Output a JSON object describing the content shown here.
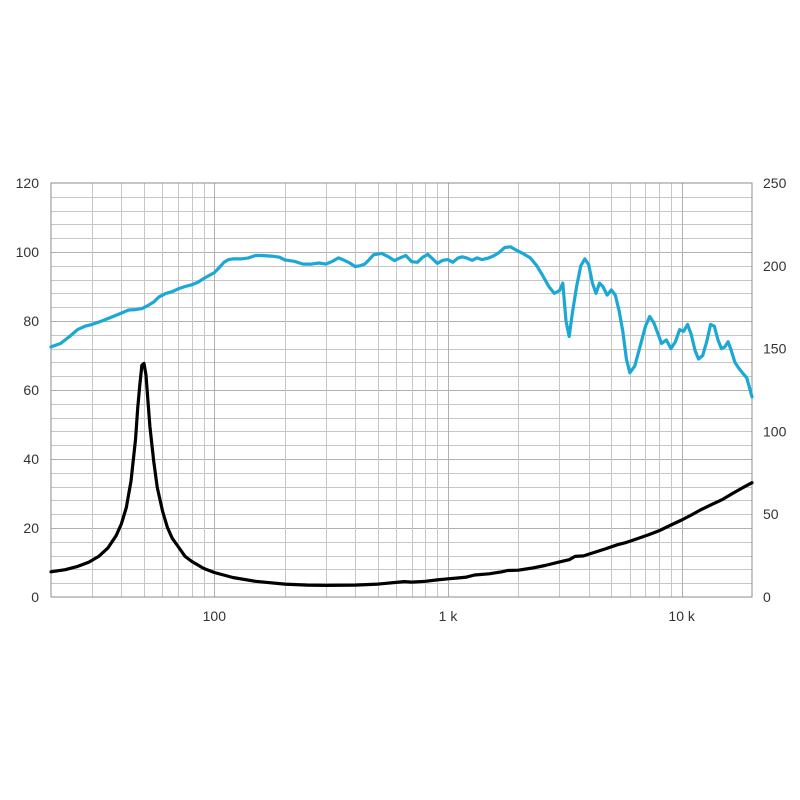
{
  "chart_data": {
    "type": "line",
    "x_scale": "log",
    "x_range": [
      20,
      20000
    ],
    "x_ticks": [
      {
        "value": 100,
        "label": "100"
      },
      {
        "value": 1000,
        "label": "1 k"
      },
      {
        "value": 10000,
        "label": "10 k"
      }
    ],
    "y_left": {
      "range": [
        0,
        120
      ],
      "ticks": [
        "0",
        "20",
        "40",
        "60",
        "80",
        "100",
        "120"
      ]
    },
    "y_right": {
      "range": [
        0,
        250
      ],
      "ticks": [
        "0",
        "50",
        "100",
        "150",
        "200",
        "250"
      ]
    },
    "grid": true,
    "series": [
      {
        "axis": "left",
        "color": "#1ba8d5",
        "points": [
          [
            20,
            72.5
          ],
          [
            22,
            73.5
          ],
          [
            24,
            75.5
          ],
          [
            26,
            77.5
          ],
          [
            28,
            78.5
          ],
          [
            30,
            79
          ],
          [
            33,
            80
          ],
          [
            36,
            81
          ],
          [
            40,
            82.3
          ],
          [
            43,
            83.2
          ],
          [
            46,
            83.3
          ],
          [
            49,
            83.6
          ],
          [
            52,
            84.5
          ],
          [
            55,
            85.5
          ],
          [
            58,
            87
          ],
          [
            62,
            88
          ],
          [
            66,
            88.5
          ],
          [
            70,
            89.3
          ],
          [
            75,
            90
          ],
          [
            80,
            90.5
          ],
          [
            85,
            91.2
          ],
          [
            90,
            92.3
          ],
          [
            95,
            93.2
          ],
          [
            100,
            94
          ],
          [
            105,
            95.5
          ],
          [
            110,
            97
          ],
          [
            115,
            97.8
          ],
          [
            120,
            98
          ],
          [
            130,
            98
          ],
          [
            140,
            98.3
          ],
          [
            150,
            99
          ],
          [
            160,
            99
          ],
          [
            175,
            98.8
          ],
          [
            190,
            98.5
          ],
          [
            200,
            97.7
          ],
          [
            220,
            97.3
          ],
          [
            240,
            96.5
          ],
          [
            260,
            96.5
          ],
          [
            280,
            96.8
          ],
          [
            300,
            96.5
          ],
          [
            320,
            97.3
          ],
          [
            340,
            98.3
          ],
          [
            360,
            97.6
          ],
          [
            380,
            96.8
          ],
          [
            400,
            95.8
          ],
          [
            420,
            96
          ],
          [
            440,
            96.5
          ],
          [
            460,
            97.8
          ],
          [
            480,
            99.2
          ],
          [
            520,
            99.6
          ],
          [
            560,
            98.5
          ],
          [
            590,
            97.5
          ],
          [
            620,
            98.2
          ],
          [
            660,
            99
          ],
          [
            700,
            97.2
          ],
          [
            740,
            97
          ],
          [
            780,
            98.5
          ],
          [
            820,
            99.3
          ],
          [
            860,
            98
          ],
          [
            900,
            96.7
          ],
          [
            950,
            97.6
          ],
          [
            1000,
            97.8
          ],
          [
            1050,
            97
          ],
          [
            1100,
            98.2
          ],
          [
            1150,
            98.6
          ],
          [
            1200,
            98.3
          ],
          [
            1270,
            97.6
          ],
          [
            1330,
            98.3
          ],
          [
            1400,
            97.8
          ],
          [
            1480,
            98.2
          ],
          [
            1560,
            98.8
          ],
          [
            1650,
            99.8
          ],
          [
            1750,
            101.3
          ],
          [
            1850,
            101.5
          ],
          [
            1950,
            100.6
          ],
          [
            2100,
            99.5
          ],
          [
            2250,
            98.3
          ],
          [
            2400,
            96
          ],
          [
            2550,
            93
          ],
          [
            2700,
            90
          ],
          [
            2850,
            88
          ],
          [
            3000,
            88.8
          ],
          [
            3100,
            91
          ],
          [
            3200,
            80
          ],
          [
            3300,
            75.5
          ],
          [
            3400,
            82
          ],
          [
            3550,
            90
          ],
          [
            3700,
            96
          ],
          [
            3850,
            98
          ],
          [
            4000,
            96.3
          ],
          [
            4150,
            91
          ],
          [
            4300,
            88
          ],
          [
            4450,
            91
          ],
          [
            4600,
            90
          ],
          [
            4800,
            87.5
          ],
          [
            5000,
            89
          ],
          [
            5200,
            87.5
          ],
          [
            5400,
            83
          ],
          [
            5600,
            77
          ],
          [
            5800,
            69
          ],
          [
            6000,
            65
          ],
          [
            6300,
            67
          ],
          [
            6600,
            72
          ],
          [
            7000,
            78.5
          ],
          [
            7300,
            81.3
          ],
          [
            7600,
            79.5
          ],
          [
            7900,
            76.5
          ],
          [
            8200,
            73.5
          ],
          [
            8600,
            74.5
          ],
          [
            9000,
            72
          ],
          [
            9400,
            74
          ],
          [
            9800,
            77.5
          ],
          [
            10200,
            77
          ],
          [
            10600,
            79
          ],
          [
            11000,
            76
          ],
          [
            11400,
            71.5
          ],
          [
            11800,
            69
          ],
          [
            12300,
            70
          ],
          [
            12800,
            74
          ],
          [
            13300,
            79
          ],
          [
            13800,
            78.5
          ],
          [
            14300,
            74.5
          ],
          [
            14800,
            72
          ],
          [
            15300,
            72.5
          ],
          [
            15800,
            74
          ],
          [
            16300,
            71.5
          ],
          [
            16900,
            68
          ],
          [
            17500,
            66.5
          ],
          [
            18200,
            65
          ],
          [
            19000,
            63.5
          ],
          [
            20000,
            58
          ]
        ]
      },
      {
        "axis": "right",
        "color": "#000000",
        "points": [
          [
            20,
            15.2
          ],
          [
            23,
            16.5
          ],
          [
            26,
            18.5
          ],
          [
            29,
            21
          ],
          [
            32,
            24.5
          ],
          [
            35,
            29.5
          ],
          [
            38,
            37
          ],
          [
            40,
            44
          ],
          [
            42,
            54
          ],
          [
            44,
            70
          ],
          [
            46,
            95
          ],
          [
            47,
            114
          ],
          [
            48,
            128
          ],
          [
            49,
            140
          ],
          [
            50,
            141
          ],
          [
            51,
            134
          ],
          [
            52,
            118
          ],
          [
            53,
            103
          ],
          [
            55,
            82
          ],
          [
            57,
            66
          ],
          [
            60,
            52
          ],
          [
            63,
            42
          ],
          [
            66,
            35.5
          ],
          [
            70,
            30.5
          ],
          [
            75,
            24.5
          ],
          [
            80,
            21.5
          ],
          [
            90,
            17.3
          ],
          [
            100,
            14.8
          ],
          [
            120,
            11.8
          ],
          [
            150,
            9.5
          ],
          [
            200,
            7.8
          ],
          [
            250,
            7.2
          ],
          [
            300,
            7
          ],
          [
            400,
            7.2
          ],
          [
            500,
            7.8
          ],
          [
            600,
            8.8
          ],
          [
            650,
            9.3
          ],
          [
            700,
            9
          ],
          [
            800,
            9.5
          ],
          [
            900,
            10.3
          ],
          [
            1000,
            11
          ],
          [
            1100,
            11.5
          ],
          [
            1200,
            12
          ],
          [
            1300,
            13.3
          ],
          [
            1500,
            14
          ],
          [
            1700,
            15.2
          ],
          [
            1800,
            16
          ],
          [
            2000,
            16.2
          ],
          [
            2300,
            17.5
          ],
          [
            2600,
            19
          ],
          [
            3000,
            21.2
          ],
          [
            3300,
            22.5
          ],
          [
            3500,
            24.5
          ],
          [
            3800,
            24.8
          ],
          [
            4200,
            26.8
          ],
          [
            4700,
            29
          ],
          [
            5300,
            31.5
          ],
          [
            5800,
            33
          ],
          [
            6400,
            35
          ],
          [
            7200,
            37.5
          ],
          [
            8000,
            40
          ],
          [
            9000,
            43.5
          ],
          [
            10000,
            46.5
          ],
          [
            11000,
            49.5
          ],
          [
            12000,
            52.5
          ],
          [
            13500,
            56
          ],
          [
            15000,
            59
          ],
          [
            16500,
            62.5
          ],
          [
            18000,
            65.5
          ],
          [
            20000,
            69
          ]
        ]
      }
    ]
  }
}
